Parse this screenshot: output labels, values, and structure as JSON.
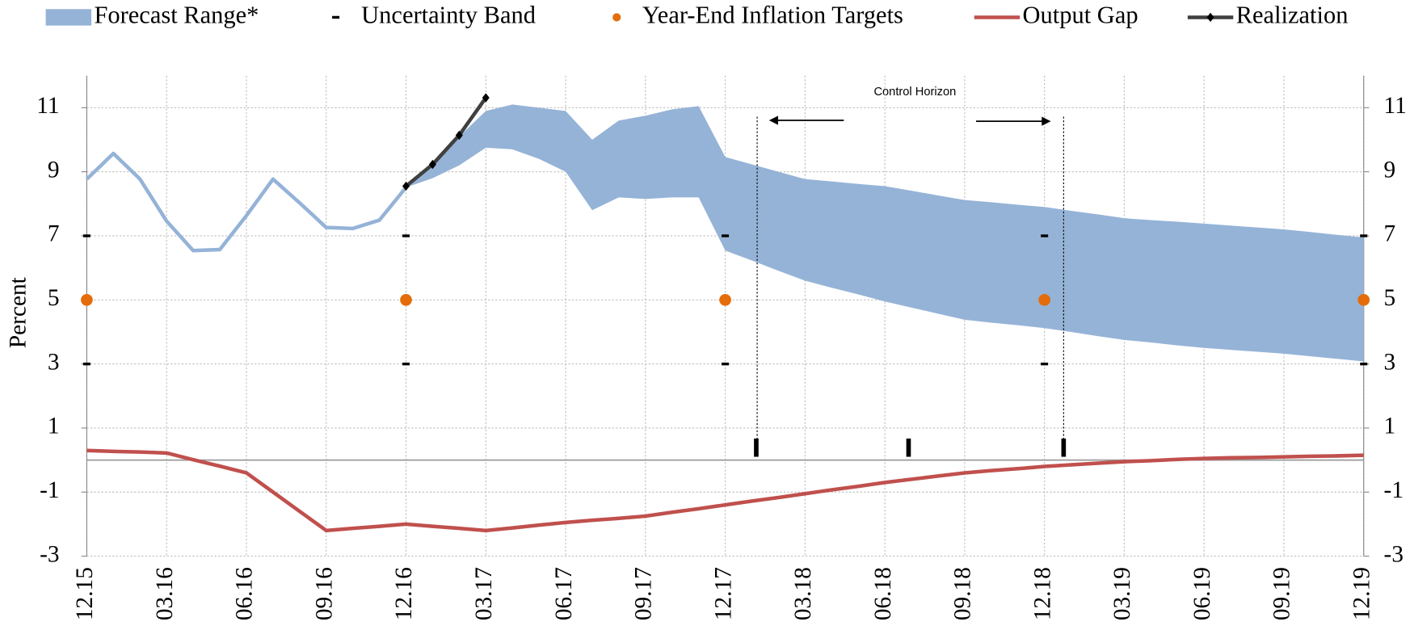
{
  "chart_data": {
    "type": "line",
    "y_label": "Percent",
    "annotation": "Control Horizon",
    "categories": [
      "12.15",
      null,
      null,
      "03.16",
      null,
      null,
      "06.16",
      null,
      null,
      "09.16",
      null,
      null,
      "12.16",
      null,
      null,
      "03.17",
      null,
      null,
      "06.17",
      null,
      null,
      "09.17",
      null,
      null,
      "12.17",
      null,
      null,
      "03.18",
      null,
      null,
      "06.18",
      null,
      null,
      "09.18",
      null,
      null,
      "12.18",
      null,
      null,
      "03.19",
      null,
      null,
      "06.19",
      null,
      null,
      "09.19",
      null,
      null,
      "12.19"
    ],
    "ylim": [
      -3,
      12
    ],
    "yticks": [
      -3,
      -1,
      1,
      3,
      5,
      7,
      9,
      11
    ],
    "y2lim": [
      -3,
      12
    ],
    "y2ticks": [
      -3,
      -1,
      1,
      3,
      5,
      7,
      9,
      11
    ],
    "grid": true,
    "series": [
      {
        "name": "Forecast Range*",
        "kind": "band",
        "color": "#95b3d7",
        "high": [
          null,
          null,
          null,
          null,
          null,
          null,
          null,
          null,
          null,
          null,
          null,
          null,
          8.51,
          9.3,
          10.1,
          10.9,
          11.1,
          11.0,
          10.9,
          10.0,
          10.6,
          10.75,
          10.95,
          11.05,
          9.46,
          9.23,
          9.0,
          8.77,
          8.7,
          8.62,
          8.55,
          8.41,
          8.26,
          8.12,
          8.05,
          7.97,
          7.9,
          7.78,
          7.67,
          7.55,
          7.49,
          7.44,
          7.38,
          7.32,
          7.26,
          7.2,
          7.12,
          7.03,
          6.95
        ],
        "low": [
          null,
          null,
          null,
          null,
          null,
          null,
          null,
          null,
          null,
          null,
          null,
          null,
          8.51,
          8.8,
          9.2,
          9.75,
          9.7,
          9.4,
          9.0,
          7.8,
          8.2,
          8.15,
          8.2,
          8.2,
          6.54,
          6.23,
          5.91,
          5.6,
          5.38,
          5.17,
          4.95,
          4.76,
          4.57,
          4.38,
          4.29,
          4.21,
          4.12,
          4.0,
          3.87,
          3.75,
          3.67,
          3.58,
          3.5,
          3.44,
          3.38,
          3.32,
          3.24,
          3.16,
          3.08
        ]
      },
      {
        "kind": "line",
        "color": "#95b3d7",
        "values": [
          8.77,
          9.57,
          8.77,
          7.46,
          6.54,
          6.57,
          7.63,
          8.77,
          8.03,
          7.26,
          7.23,
          7.49,
          8.51,
          null,
          null,
          null,
          null,
          null,
          null,
          null,
          null,
          null,
          null,
          null,
          null,
          null,
          null,
          null,
          null,
          null,
          null,
          null,
          null,
          null,
          null,
          null,
          null,
          null,
          null,
          null,
          null,
          null,
          null,
          null,
          null,
          null,
          null,
          null,
          null
        ]
      },
      {
        "name": "Uncertainty Band",
        "kind": "dash",
        "color": "#000000",
        "high": [
          7,
          null,
          null,
          null,
          null,
          null,
          null,
          null,
          null,
          null,
          null,
          null,
          7,
          null,
          null,
          null,
          null,
          null,
          null,
          null,
          null,
          null,
          null,
          null,
          7,
          null,
          null,
          null,
          null,
          null,
          null,
          null,
          null,
          null,
          null,
          null,
          7,
          null,
          null,
          null,
          null,
          null,
          null,
          null,
          null,
          null,
          null,
          null,
          7
        ],
        "low": [
          3,
          null,
          null,
          null,
          null,
          null,
          null,
          null,
          null,
          null,
          null,
          null,
          3,
          null,
          null,
          null,
          null,
          null,
          null,
          null,
          null,
          null,
          null,
          null,
          3,
          null,
          null,
          null,
          null,
          null,
          null,
          null,
          null,
          null,
          null,
          null,
          3,
          null,
          null,
          null,
          null,
          null,
          null,
          null,
          null,
          null,
          null,
          null,
          3
        ]
      },
      {
        "name": "Year-End Inflation Targets",
        "kind": "dot",
        "color": "#e46c0a",
        "values": [
          5,
          null,
          null,
          null,
          null,
          null,
          null,
          null,
          null,
          null,
          null,
          null,
          5,
          null,
          null,
          null,
          null,
          null,
          null,
          null,
          null,
          null,
          null,
          null,
          5,
          null,
          null,
          null,
          null,
          null,
          null,
          null,
          null,
          null,
          null,
          null,
          5,
          null,
          null,
          null,
          null,
          null,
          null,
          null,
          null,
          null,
          null,
          null,
          5
        ]
      },
      {
        "name": "Output Gap",
        "kind": "line",
        "color": "#c0504d",
        "values": [
          0.3,
          0.27,
          0.25,
          0.22,
          0.01,
          -0.19,
          -0.4,
          -1.0,
          -1.6,
          -2.2,
          -2.13,
          -2.07,
          -2.0,
          -2.07,
          -2.13,
          -2.2,
          -2.12,
          -2.03,
          -1.95,
          -1.88,
          -1.82,
          -1.75,
          -1.63,
          -1.52,
          -1.4,
          -1.28,
          -1.17,
          -1.05,
          -0.93,
          -0.82,
          -0.7,
          -0.6,
          -0.5,
          -0.4,
          -0.33,
          -0.27,
          -0.2,
          -0.15,
          -0.1,
          -0.05,
          -0.02,
          0.02,
          0.05,
          0.07,
          0.08,
          0.1,
          0.12,
          0.13,
          0.15
        ]
      },
      {
        "name": "Realization",
        "kind": "line",
        "marker": "diamond",
        "color": "#404040",
        "values": [
          null,
          null,
          null,
          null,
          null,
          null,
          null,
          null,
          null,
          null,
          null,
          null,
          8.55,
          9.23,
          10.14,
          11.31,
          null,
          null,
          null,
          null,
          null,
          null,
          null,
          null,
          null,
          null,
          null,
          null,
          null,
          null,
          null,
          null,
          null,
          null,
          null,
          null,
          null,
          null,
          null,
          null,
          null,
          null,
          null,
          null,
          null,
          null,
          null,
          null,
          null
        ]
      }
    ]
  }
}
